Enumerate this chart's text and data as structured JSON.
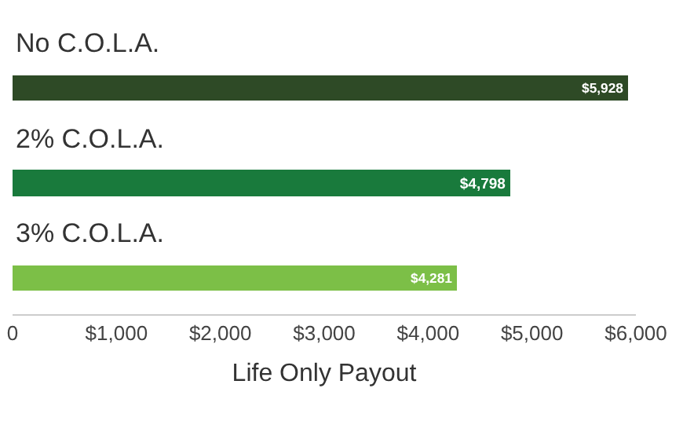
{
  "chart_data": {
    "type": "bar",
    "orientation": "horizontal",
    "xlabel": "Life Only Payout",
    "categories": [
      "No C.O.L.A.",
      "2% C.O.L.A.",
      "3% C.O.L.A."
    ],
    "values": [
      5928,
      4798,
      4281
    ],
    "colors": [
      "#2e4a26",
      "#197a3c",
      "#7cbf47"
    ],
    "value_labels": [
      "$5,928",
      "$4,798",
      "$4,281"
    ],
    "xlim": [
      0,
      6000
    ],
    "xticks": [
      0,
      {
        "value": 1000,
        "label": "$1,000"
      },
      {
        "value": 2000,
        "label": "$2,000"
      },
      {
        "value": 3000,
        "label": "$3,000"
      },
      {
        "value": 4000,
        "label": "$4,000"
      },
      {
        "value": 5000,
        "label": "$5,000"
      },
      {
        "value": 6000,
        "label": "$6,000"
      }
    ]
  }
}
